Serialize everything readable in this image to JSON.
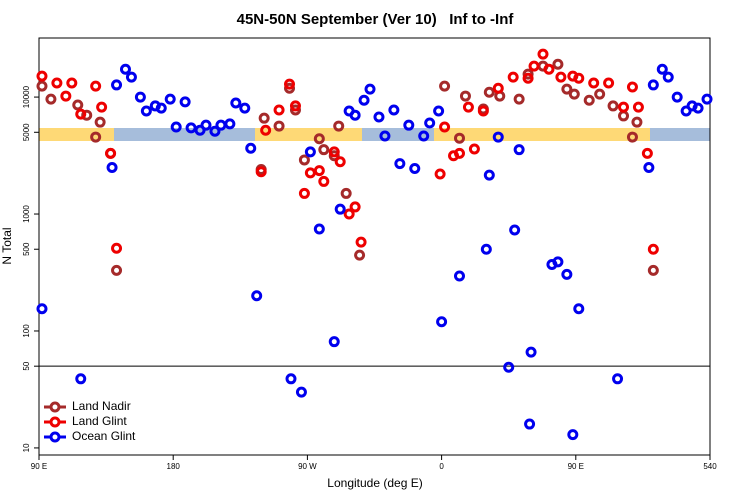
{
  "chart_data": {
    "type": "scatter",
    "title": "45N-50N September (Ver 10)   Inf to -Inf",
    "x_label": "Longitude (deg E)",
    "y_label": "N Total",
    "log_y": true,
    "xlim": [
      90,
      540
    ],
    "ylim": [
      8.7,
      32000
    ],
    "xticks": [
      {
        "value": 90,
        "label": "90 E"
      },
      180,
      {
        "value": 270,
        "label": "90 W"
      },
      {
        "value": 360,
        "label": "0"
      },
      {
        "value": 450,
        "label": "90 E"
      },
      540
    ],
    "yticks": [
      10,
      50,
      100,
      500,
      1000,
      5000,
      10000
    ],
    "hline": 50,
    "legend": "bottom-left",
    "series": [
      {
        "name": "Land Nadir",
        "color": "#a52a2a",
        "x": [
          92,
          98,
          116,
          122,
          131,
          128,
          138,
          142,
          239,
          241,
          251,
          258,
          262,
          268,
          278,
          281,
          288,
          291,
          296,
          305,
          362,
          376,
          372,
          388,
          392,
          399,
          412,
          418,
          428,
          438,
          444,
          449,
          459,
          466,
          475,
          482,
          488,
          491,
          502
        ],
        "values": [
          12400,
          9600,
          8550,
          7000,
          6100,
          4550,
          3300,
          330,
          2400,
          6600,
          5650,
          11900,
          7750,
          2900,
          4400,
          3550,
          3150,
          5650,
          1500,
          445,
          12400,
          10200,
          4450,
          7900,
          11000,
          10200,
          9600,
          15700,
          18400,
          19100,
          11700,
          10600,
          9400,
          10600,
          8400,
          6900,
          4550,
          6100,
          330
        ]
      },
      {
        "name": "Land Glint",
        "color": "#ee0000",
        "x": [
          92,
          102,
          112,
          108,
          118,
          128,
          132,
          138,
          142,
          239,
          242,
          251,
          258,
          262,
          268,
          272,
          278,
          281,
          288,
          292,
          298,
          302,
          306,
          359,
          362,
          368,
          372,
          378,
          382,
          388,
          398,
          408,
          418,
          422,
          428,
          432,
          440,
          448,
          452,
          462,
          472,
          482,
          488,
          492,
          498,
          502
        ],
        "values": [
          15100,
          13200,
          13200,
          10200,
          7150,
          12400,
          8200,
          3300,
          510,
          2300,
          5200,
          7750,
          12900,
          8400,
          1500,
          2250,
          2350,
          1900,
          3400,
          2800,
          1000,
          1150,
          575,
          2200,
          5550,
          3150,
          3300,
          8200,
          3600,
          7600,
          11900,
          14800,
          14500,
          18400,
          23300,
          17300,
          14800,
          15100,
          14500,
          13200,
          13200,
          8200,
          12200,
          8200,
          3300,
          500
        ]
      },
      {
        "name": "Ocean Glint",
        "color": "#0000ee",
        "x": [
          92,
          118,
          139,
          142,
          148,
          152,
          158,
          162,
          168,
          172,
          178,
          182,
          188,
          192,
          198,
          202,
          208,
          212,
          218,
          222,
          228,
          232,
          236,
          259,
          266,
          272,
          278,
          288,
          292,
          298,
          302,
          308,
          312,
          318,
          322,
          328,
          332,
          338,
          342,
          348,
          352,
          358,
          360,
          372,
          390,
          392,
          398,
          405,
          409,
          412,
          420,
          419,
          434,
          438,
          444,
          448,
          452,
          478,
          499,
          502,
          508,
          512,
          518,
          524,
          528,
          532,
          538
        ],
        "values": [
          155,
          39,
          2500,
          12700,
          17300,
          14800,
          10000,
          7600,
          8400,
          8050,
          9600,
          5550,
          9100,
          5450,
          5200,
          5750,
          5100,
          5750,
          5900,
          8900,
          8050,
          3650,
          200,
          39,
          30,
          3400,
          745,
          81,
          1100,
          7600,
          7000,
          9400,
          11700,
          6750,
          4650,
          7750,
          2700,
          5750,
          2450,
          4650,
          6000,
          7600,
          120,
          295,
          500,
          2150,
          4550,
          49,
          730,
          3550,
          66,
          16,
          370,
          390,
          305,
          13,
          155,
          39,
          2500,
          12700,
          17300,
          14800,
          10000,
          7600,
          8400,
          8050,
          9600
        ]
      }
    ]
  }
}
